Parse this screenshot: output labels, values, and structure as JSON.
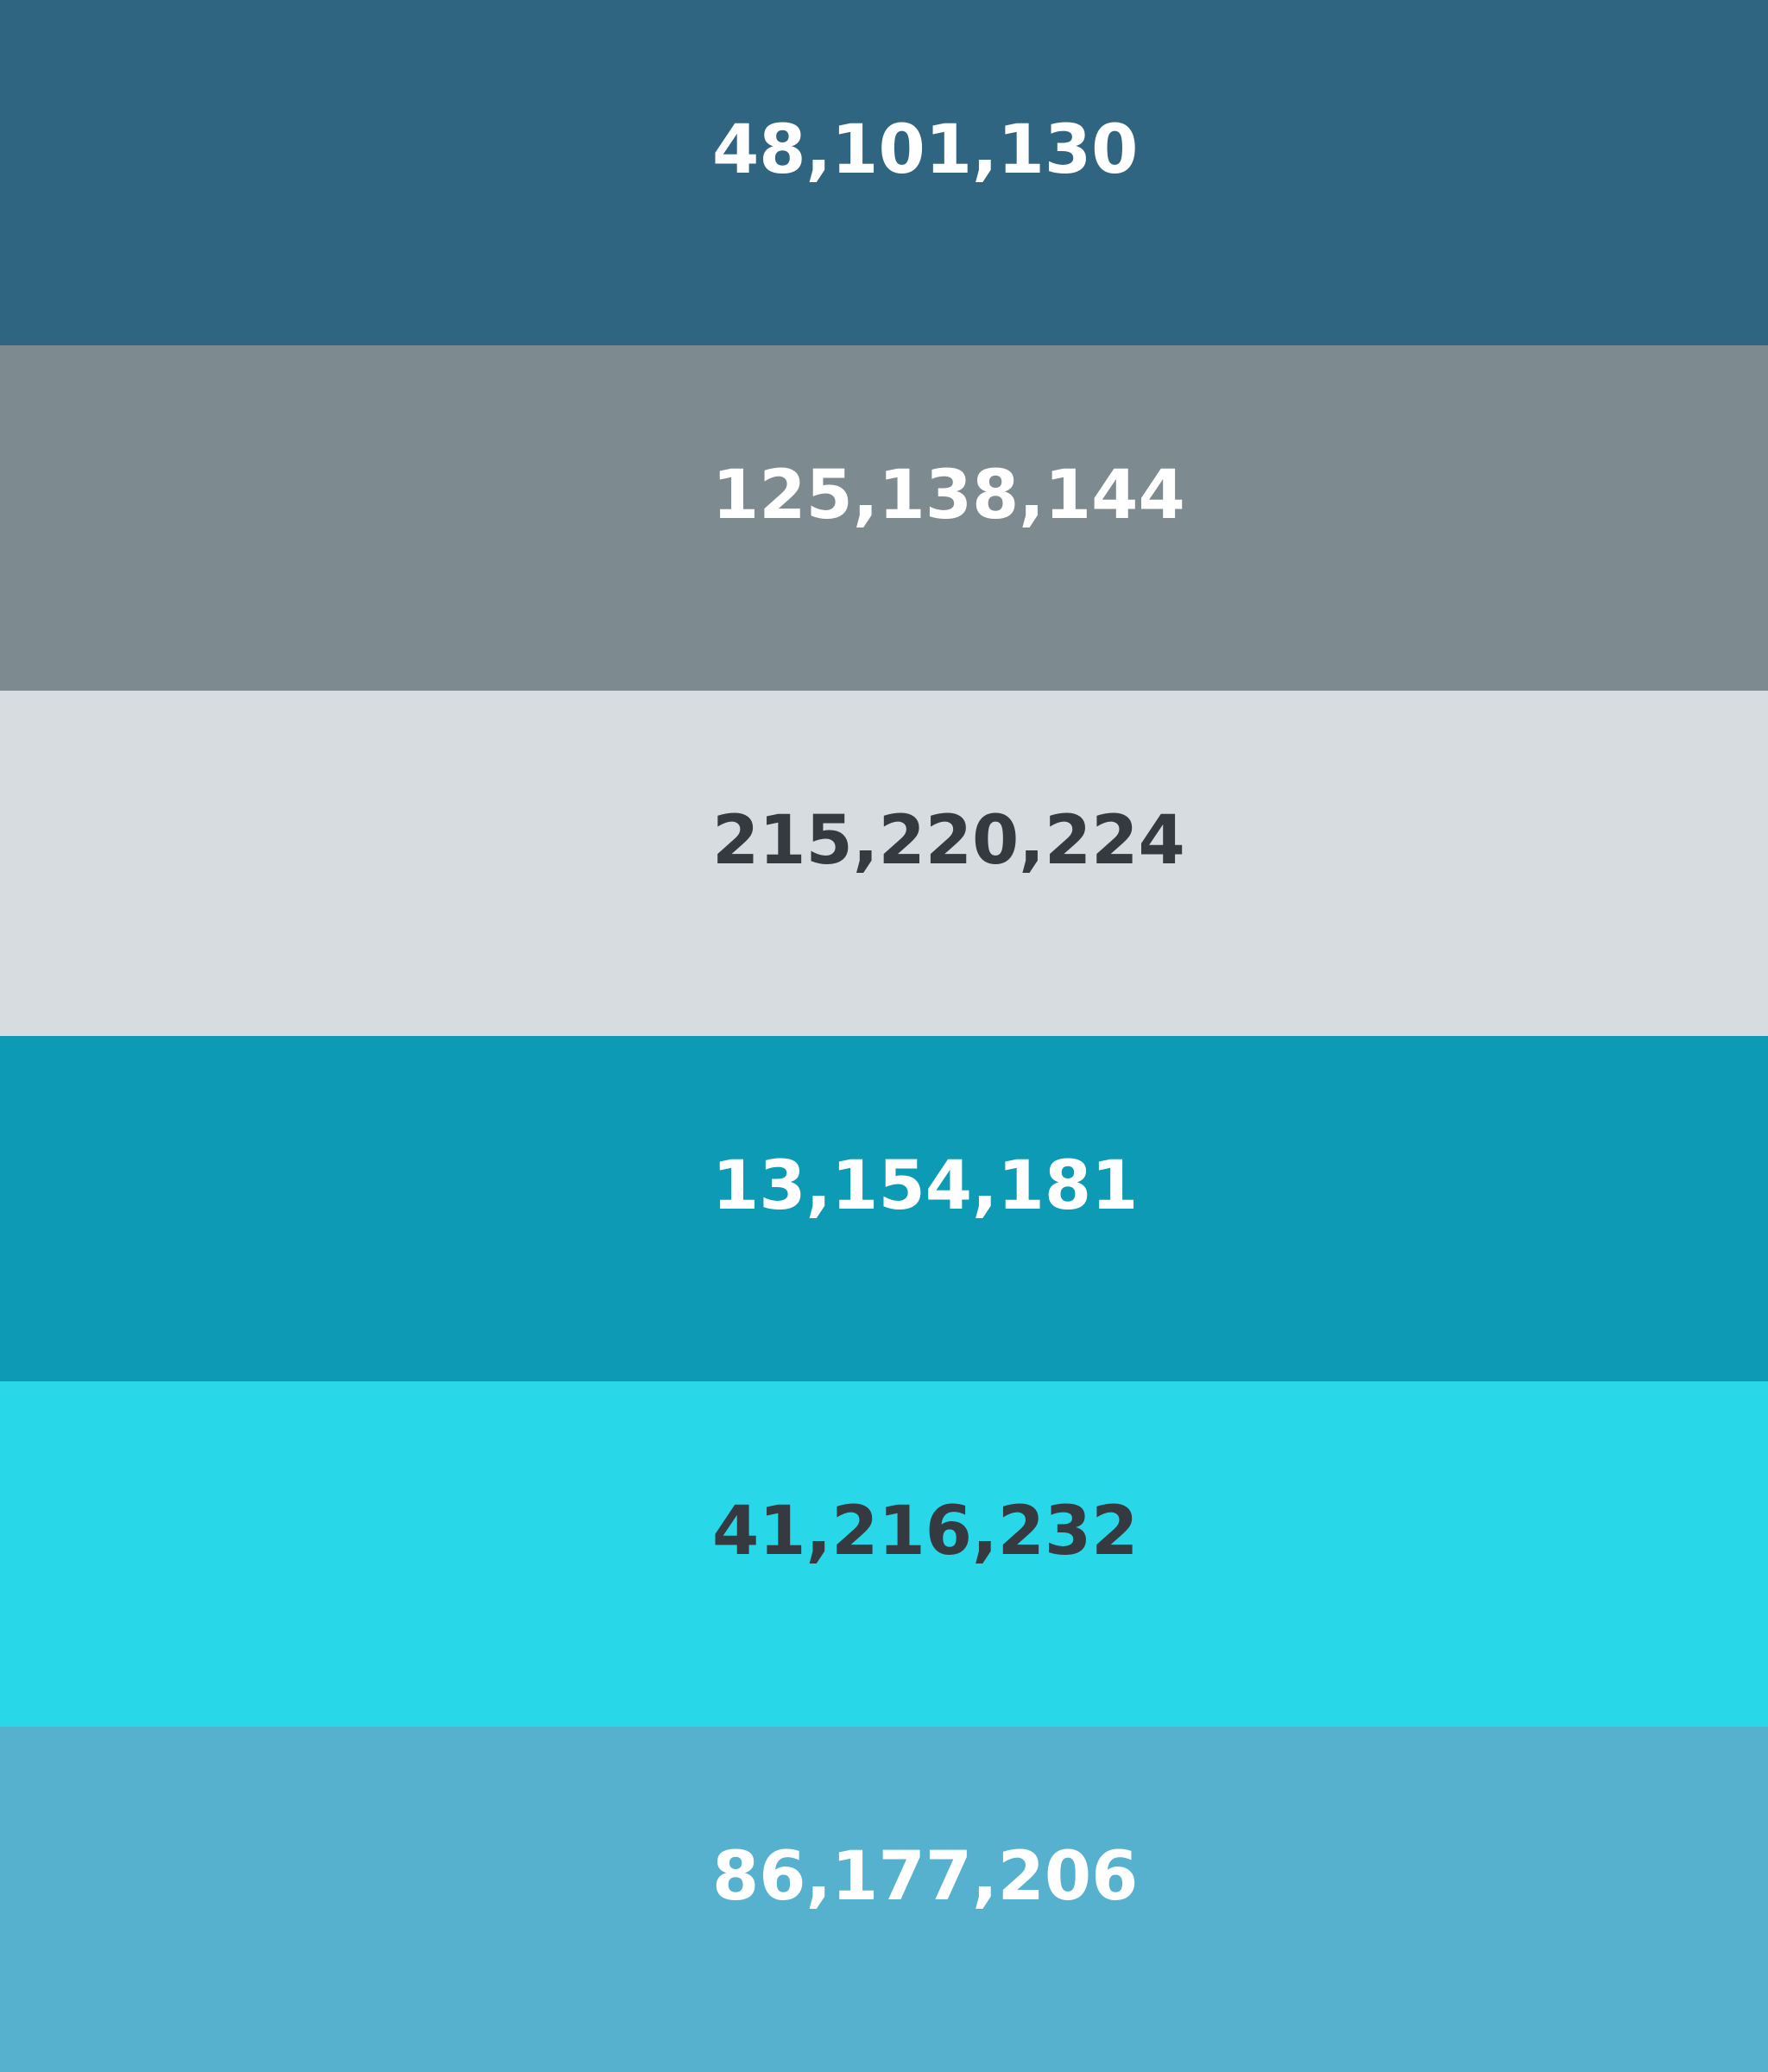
{
  "swatches": [
    {
      "label": "48,101,130",
      "color": "#306582",
      "text_color": "#ffffff"
    },
    {
      "label": "125,138,144",
      "color": "#7d8a90",
      "text_color": "#ffffff"
    },
    {
      "label": "215,220,224",
      "color": "#d7dce0",
      "text_color": "#343a40"
    },
    {
      "label": "13,154,181",
      "color": "#0d9ab5",
      "text_color": "#ffffff"
    },
    {
      "label": "41,216,232",
      "color": "#29d8e8",
      "text_color": "#343a40"
    },
    {
      "label": "86,177,206",
      "color": "#56b1ce",
      "text_color": "#ffffff"
    }
  ]
}
